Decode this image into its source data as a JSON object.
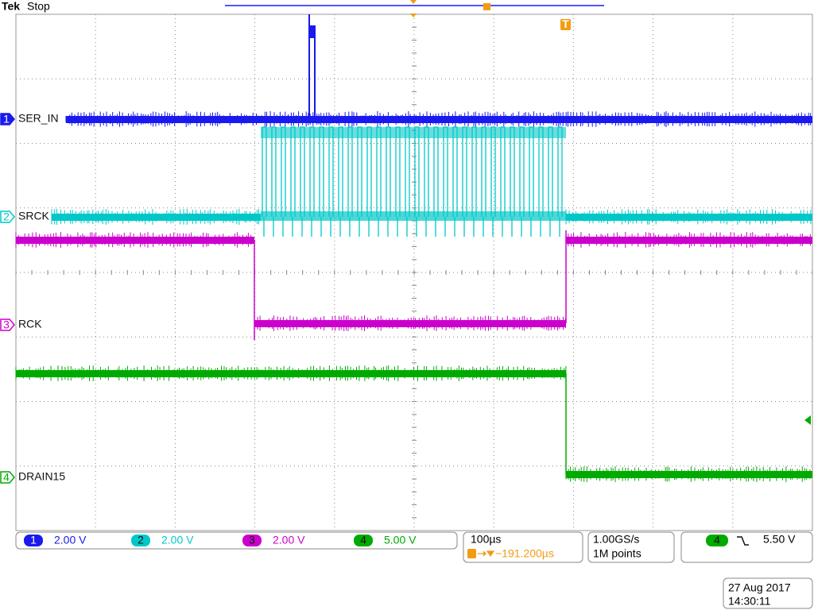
{
  "header": {
    "brand": "Tek",
    "status": "Stop",
    "trigger_marker": "T"
  },
  "channels": [
    {
      "number": "1",
      "label": "SER_IN",
      "scale": "2.00 V"
    },
    {
      "number": "2",
      "label": "SRCK",
      "scale": "2.00 V"
    },
    {
      "number": "3",
      "label": "RCK",
      "scale": "2.00 V"
    },
    {
      "number": "4",
      "label": "DRAIN15",
      "scale": "5.00 V"
    }
  ],
  "timebase": {
    "scale": "100µs",
    "trigger_position": "−191.200µs"
  },
  "acquisition": {
    "sample_rate": "1.00GS/s",
    "record_length": "1M points"
  },
  "trigger": {
    "source": "4",
    "level": "5.50 V"
  },
  "timestamp": {
    "date": "27 Aug 2017",
    "time": "14:30:11"
  }
}
